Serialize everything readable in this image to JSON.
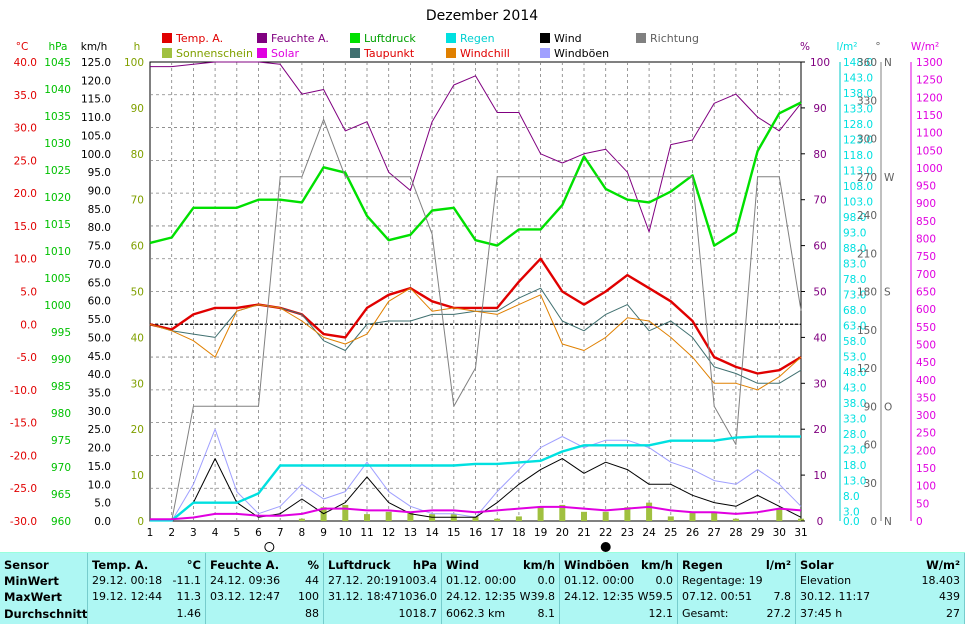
{
  "chart_data": {
    "type": "line",
    "title": "Dezember 2014",
    "categories": [
      "1",
      "2",
      "3",
      "4",
      "5",
      "6",
      "7",
      "8",
      "9",
      "10",
      "11",
      "12",
      "13",
      "14",
      "15",
      "16",
      "17",
      "18",
      "19",
      "20",
      "21",
      "22",
      "23",
      "24",
      "25",
      "26",
      "27",
      "28",
      "29",
      "30",
      "31"
    ],
    "axes": {
      "temp": {
        "unit": "°C",
        "min": -30,
        "max": 40,
        "step": 5,
        "color": "#e00000"
      },
      "pressure": {
        "unit": "hPa",
        "min": 960,
        "max": 1045,
        "step": 5,
        "color": "#00c000"
      },
      "wind": {
        "unit": "km/h",
        "min": 0,
        "max": 125,
        "step": 5,
        "color": "#000000"
      },
      "sun": {
        "unit": "h",
        "min": 0,
        "max": 100,
        "step": 10,
        "color": "#a0c040"
      },
      "humidity": {
        "unit": "%",
        "min": 0,
        "max": 100,
        "step": 10,
        "color": "#800080"
      },
      "rain": {
        "unit": "l/m²",
        "min": 0,
        "max": 148,
        "step": 5,
        "color": "#00e0e0"
      },
      "direction": {
        "unit": "°",
        "min": 0,
        "max": 360,
        "ticks": [
          [
            0,
            "N"
          ],
          [
            30,
            ""
          ],
          [
            60,
            ""
          ],
          [
            90,
            "O"
          ],
          [
            120,
            ""
          ],
          [
            150,
            ""
          ],
          [
            180,
            "S"
          ],
          [
            210,
            ""
          ],
          [
            240,
            ""
          ],
          [
            270,
            "W"
          ],
          [
            300,
            ""
          ],
          [
            330,
            ""
          ],
          [
            360,
            "N"
          ]
        ],
        "color": "#606060"
      },
      "solar": {
        "unit": "W/m²",
        "min": 0,
        "max": 1300,
        "step": 50,
        "color": "#e000e0"
      }
    },
    "legend": [
      {
        "name": "Temp. A.",
        "color": "#e00000"
      },
      {
        "name": "Feuchte A.",
        "color": "#800080"
      },
      {
        "name": "Luftdruck",
        "color": "#00e000"
      },
      {
        "name": "Regen",
        "color": "#00e0e0"
      },
      {
        "name": "Wind",
        "color": "#000000"
      },
      {
        "name": "Richtung",
        "color": "#808080"
      },
      {
        "name": "Sonnenschein",
        "color": "#a0c040"
      },
      {
        "name": "Solar",
        "color": "#e000e0"
      },
      {
        "name": "Taupunkt",
        "color": "#407070"
      },
      {
        "name": "Windchill",
        "color": "#e08000"
      },
      {
        "name": "Windböen",
        "color": "#a0a0ff"
      }
    ],
    "series": [
      {
        "name": "Temp. A.",
        "axis": "temp",
        "color": "#e00000",
        "width": 2.4,
        "values": [
          0.0,
          -0.8,
          1.5,
          2.5,
          2.5,
          3.0,
          2.5,
          1.5,
          -1.5,
          -2.0,
          2.5,
          4.5,
          5.5,
          3.5,
          2.5,
          2.5,
          2.5,
          6.5,
          10.0,
          5.0,
          3.0,
          5.0,
          7.5,
          5.5,
          3.5,
          0.5,
          -5.0,
          -6.5,
          -7.5,
          -7.0,
          -5.0
        ]
      },
      {
        "name": "Feuchte A.",
        "axis": "humidity",
        "color": "#800080",
        "width": 1,
        "values": [
          99,
          99,
          99.5,
          100,
          100,
          100,
          99.5,
          93,
          94,
          85,
          87,
          76,
          72,
          87,
          95,
          97,
          89,
          89,
          80,
          78,
          80,
          81,
          76,
          63,
          82,
          83,
          91,
          93,
          88,
          85,
          91
        ]
      },
      {
        "name": "Luftdruck",
        "axis": "pressure",
        "color": "#00e000",
        "width": 2.4,
        "values": [
          1011.5,
          1012.5,
          1018,
          1018,
          1018,
          1019.5,
          1019.5,
          1019,
          1025.5,
          1024.5,
          1016.5,
          1012,
          1013,
          1017.5,
          1018,
          1012,
          1011,
          1014,
          1014,
          1018.5,
          1027.5,
          1021.5,
          1019.5,
          1019,
          1021,
          1024,
          1011,
          1013.5,
          1028.5,
          1035.5,
          1037.5
        ]
      },
      {
        "name": "Taupunkt",
        "axis": "temp",
        "color": "#407070",
        "width": 1,
        "values": [
          0.0,
          -1.0,
          -1.5,
          -2.0,
          2.0,
          3.0,
          2.5,
          1.5,
          -2.5,
          -4.0,
          0.0,
          0.5,
          0.5,
          1.5,
          1.5,
          2.0,
          2.0,
          4.0,
          5.5,
          0.5,
          -1.0,
          1.5,
          3.0,
          -1.0,
          0.5,
          -2.0,
          -6.5,
          -7.5,
          -9.0,
          -9.0,
          -7.0
        ]
      },
      {
        "name": "Windchill",
        "axis": "temp",
        "color": "#e08000",
        "width": 1,
        "values": [
          0.0,
          -1.0,
          -2.5,
          -5.0,
          2.0,
          3.0,
          2.5,
          0.5,
          -2.0,
          -3.0,
          -1.5,
          3.5,
          5.5,
          2.0,
          2.5,
          2.0,
          1.5,
          3.0,
          4.5,
          -3.0,
          -4.0,
          -2.0,
          1.0,
          0.5,
          -2.0,
          -5.0,
          -9.0,
          -9.0,
          -10.0,
          -8.0,
          -5.0
        ]
      },
      {
        "name": "Richtung",
        "axis": "direction",
        "color": "#808080",
        "width": 1,
        "values": [
          0,
          0,
          90,
          90,
          90,
          90,
          270,
          270,
          315,
          270,
          270,
          270,
          270,
          225,
          90,
          120,
          270,
          270,
          270,
          270,
          270,
          270,
          270,
          270,
          270,
          270,
          90,
          60,
          270,
          270,
          165
        ]
      },
      {
        "name": "Windböen",
        "axis": "wind",
        "color": "#a0a0ff",
        "width": 1,
        "values": [
          0,
          0,
          10,
          25,
          8,
          2,
          4,
          10,
          6,
          8,
          16,
          8,
          4,
          2,
          2,
          1,
          8,
          14,
          20,
          23,
          20,
          22,
          22,
          20,
          16,
          14,
          11,
          10,
          14,
          10,
          4
        ]
      },
      {
        "name": "Wind",
        "axis": "wind",
        "color": "#000000",
        "width": 1,
        "values": [
          0,
          0,
          5,
          17,
          5,
          1,
          2,
          6,
          2,
          5,
          12,
          5,
          2,
          1,
          1,
          1,
          5,
          10,
          14,
          17,
          13,
          16,
          14,
          10,
          10,
          7,
          5,
          4,
          7,
          4,
          1
        ]
      },
      {
        "name": "Regen",
        "axis": "rain",
        "color": "#00e0e0",
        "width": 2.4,
        "values": [
          0.2,
          0.2,
          5.9,
          5.9,
          5.9,
          8.9,
          17.9,
          17.9,
          17.9,
          17.9,
          17.9,
          17.9,
          17.9,
          17.9,
          17.9,
          18.4,
          18.4,
          18.9,
          19.4,
          22.4,
          24.4,
          24.4,
          24.4,
          24.4,
          25.9,
          25.9,
          25.9,
          26.9,
          27.2,
          27.2,
          27.2
        ]
      },
      {
        "name": "Solar",
        "axis": "solar",
        "color": "#e000e0",
        "width": 2,
        "values": [
          5,
          5,
          10,
          20,
          20,
          15,
          15,
          20,
          35,
          35,
          30,
          30,
          25,
          30,
          30,
          25,
          30,
          35,
          40,
          40,
          35,
          30,
          35,
          40,
          30,
          25,
          25,
          20,
          25,
          35,
          30
        ]
      }
    ],
    "sunshine_bars": {
      "name": "Sonnenschein",
      "axis": "sun",
      "color": "#a0c040",
      "values": [
        0,
        0,
        0,
        0,
        0,
        0,
        0,
        0.5,
        3.0,
        3.5,
        1.5,
        2.0,
        2.0,
        1.5,
        1.5,
        1.0,
        0.5,
        1.0,
        3.0,
        3.5,
        2.0,
        2.0,
        3.0,
        4.0,
        1.0,
        2.0,
        2.0,
        0.5,
        0,
        2.5,
        0.5
      ]
    },
    "zero_line_temp": 0,
    "moon_phases": [
      {
        "day": 6.5,
        "phase": "full"
      },
      {
        "day": 22,
        "phase": "new"
      }
    ],
    "grid": true
  },
  "stats": {
    "columns": [
      {
        "header": "Sensor",
        "rows": [
          "MinWert",
          "MaxWert",
          "Durchschnitt"
        ]
      },
      {
        "header": "Temp. A.",
        "unit": "°C",
        "rows": [
          {
            "left": "29.12.  00:18",
            "right": "-11.1"
          },
          {
            "left": "19.12.  12:44",
            "right": "11.3"
          },
          {
            "left": "",
            "right": "1.46"
          }
        ]
      },
      {
        "header": "Feuchte A.",
        "unit": "%",
        "rows": [
          {
            "left": "24.12.  09:36",
            "right": "44"
          },
          {
            "left": "03.12.  12:47",
            "right": "100"
          },
          {
            "left": "",
            "right": "88"
          }
        ]
      },
      {
        "header": "Luftdruck",
        "unit": "hPa",
        "rows": [
          {
            "left": "27.12.  20:19",
            "right": "1003.4"
          },
          {
            "left": "31.12.  18:47",
            "right": "1036.0"
          },
          {
            "left": "",
            "right": "1018.7"
          }
        ]
      },
      {
        "header": "Wind",
        "unit": "km/h",
        "rows": [
          {
            "left": "01.12.  00:00",
            "right": "0.0"
          },
          {
            "left": "24.12.  12:35  W",
            "right": "39.8"
          },
          {
            "left": "6062.3 km",
            "right": "8.1"
          }
        ]
      },
      {
        "header": "Windböen",
        "unit": "km/h",
        "rows": [
          {
            "left": "01.12.  00:00",
            "right": "0.0"
          },
          {
            "left": "24.12.  12:35  W",
            "right": "59.5"
          },
          {
            "left": "",
            "right": "12.1"
          }
        ]
      },
      {
        "header": "Regen",
        "unit": "l/m²",
        "rows": [
          {
            "left": "Regentage: 19",
            "right": ""
          },
          {
            "left": "07.12.  00:51",
            "right": "7.8"
          },
          {
            "left": "Gesamt:",
            "right": "27.2"
          }
        ]
      },
      {
        "header": "Solar",
        "unit": "W/m²",
        "rows": [
          {
            "left": "Elevation",
            "right": "18.403"
          },
          {
            "left": "30.12.  11:17",
            "right": "439"
          },
          {
            "left": "37:45 h",
            "right": "27"
          }
        ]
      }
    ]
  }
}
